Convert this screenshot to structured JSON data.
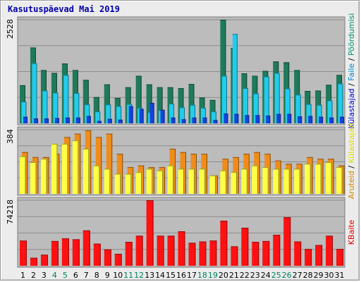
{
  "chart_data": {
    "title": "Kasutuspäevad Mai 2019",
    "type": "bar",
    "categories": [
      "1",
      "2",
      "3",
      "4",
      "5",
      "6",
      "7",
      "8",
      "9",
      "10",
      "11",
      "12",
      "13",
      "14",
      "15",
      "16",
      "17",
      "18",
      "19",
      "20",
      "21",
      "22",
      "23",
      "24",
      "25",
      "26",
      "27",
      "28",
      "29",
      "30",
      "31"
    ],
    "weekend_days": [
      "4",
      "5",
      "11",
      "12",
      "18",
      "19",
      "25",
      "26"
    ],
    "colors": {
      "panel_bg": "#bcbcbc",
      "grid": "#8c8c8c",
      "title": "#0000aa",
      "weekday_label": "#000000",
      "weekend_label": "#008060"
    },
    "panels": [
      {
        "id": "hits",
        "ymax_label": "2528",
        "ymax": 2528,
        "right_label_segments": [
          {
            "text": "Külastajad",
            "color": "#0000cc"
          },
          {
            "text": " / ",
            "color": "#000000"
          },
          {
            "text": "Faile",
            "color": "#0088cc"
          },
          {
            "text": " / ",
            "color": "#000000"
          },
          {
            "text": "Pöördumisi",
            "color": "#009070"
          }
        ],
        "series": [
          {
            "name": "Pöördumisi",
            "color": "#1f7a5a",
            "values": [
              930,
              1850,
              1300,
              1230,
              1460,
              1300,
              1060,
              640,
              950,
              620,
              880,
              1160,
              950,
              880,
              880,
              860,
              960,
              630,
              570,
              2528,
              1840,
              1220,
              1160,
              1280,
              1510,
              1490,
              1300,
              790,
              800,
              940,
              1180
            ]
          },
          {
            "name": "Faile",
            "color": "#22ccee",
            "values": [
              530,
              1470,
              800,
              750,
              1180,
              740,
              460,
              290,
              460,
              420,
              470,
              380,
              270,
              320,
              480,
              390,
              450,
              380,
              290,
              1160,
              2180,
              860,
              730,
              1140,
              1230,
              850,
              700,
              470,
              450,
              560,
              970
            ]
          },
          {
            "name": "Külastajad",
            "color": "#1144dd",
            "values": [
              160,
              120,
              120,
              130,
              140,
              140,
              180,
              60,
              110,
              90,
              420,
              350,
              500,
              330,
              140,
              100,
              140,
              140,
              80,
              240,
              230,
              200,
              200,
              190,
              230,
              230,
              170,
              180,
              160,
              140,
              160
            ]
          }
        ]
      },
      {
        "id": "visits",
        "ymax_label": "384",
        "ymax": 384,
        "right_label_segments": [
          {
            "text": "Aruteid",
            "color": "#cc8800"
          },
          {
            "text": " / ",
            "color": "#000000"
          },
          {
            "text": "Külastajad",
            "color": "#dddd00"
          }
        ],
        "series": [
          {
            "name": "Aruteid",
            "color": "#f08c1a",
            "values": [
              250,
              220,
              220,
              240,
              340,
              360,
              380,
              340,
              360,
              240,
              160,
              170,
              160,
              160,
              270,
              250,
              240,
              240,
              110,
              210,
              220,
              240,
              250,
              240,
              200,
              180,
              180,
              220,
              210,
              210,
              170
            ]
          },
          {
            "name": "Külastajad",
            "color": "#ffff44",
            "values": [
              225,
              190,
              210,
              300,
              300,
              320,
              270,
              170,
              150,
              120,
              120,
              130,
              150,
              140,
              170,
              150,
              150,
              150,
              110,
              140,
              130,
              150,
              170,
              160,
              150,
              150,
              150,
              180,
              180,
              190,
              160
            ]
          }
        ]
      },
      {
        "id": "kbytes",
        "ymax_label": "74218",
        "ymax": 74218,
        "right_label_segments": [
          {
            "text": "KBaite",
            "color": "#dd0000"
          }
        ],
        "series": [
          {
            "name": "KBaite",
            "color": "#ff1111",
            "values": [
              28500,
              9000,
              12500,
              28000,
              31000,
              30000,
              40000,
              25000,
              18500,
              13500,
              27000,
              34000,
              74218,
              34000,
              34000,
              39000,
              26000,
              27500,
              28500,
              51000,
              22000,
              43000,
              27000,
              28000,
              35000,
              55000,
              27500,
              19000,
              23500,
              34000,
              19000
            ]
          }
        ]
      }
    ]
  }
}
